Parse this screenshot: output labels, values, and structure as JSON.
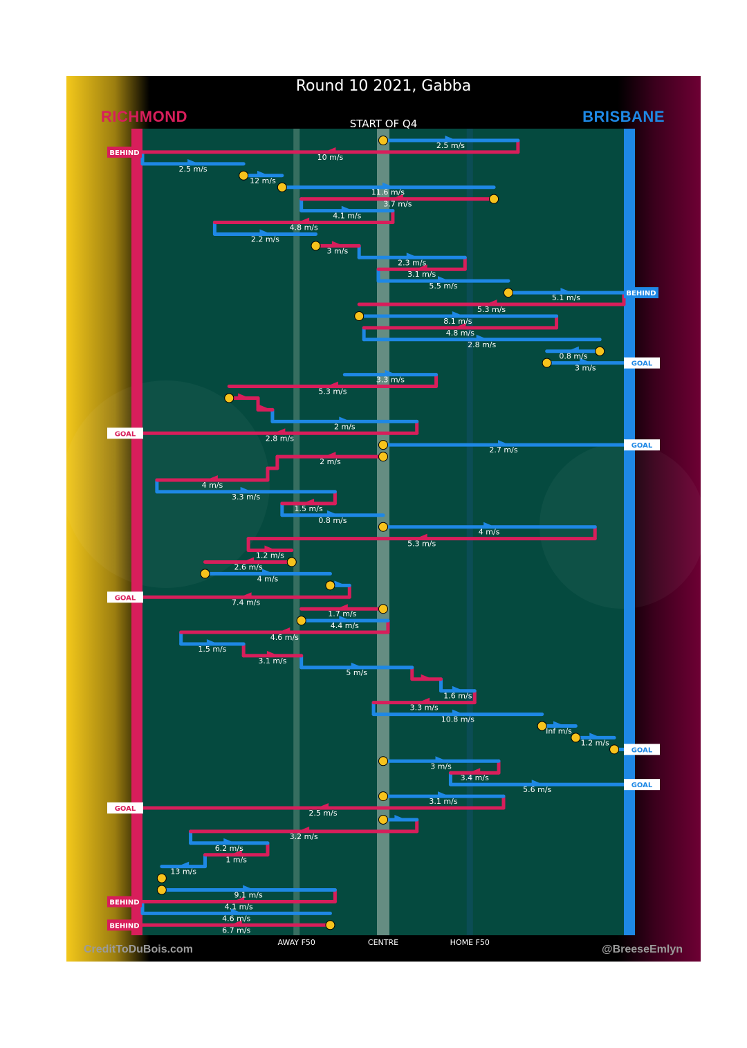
{
  "header": {
    "title": "Round 10 2021, Gabba",
    "team_left": "RICHMOND",
    "team_right": "BRISBANE",
    "subtitle": "START OF Q4",
    "credit_left": "CreditToDuBois.com",
    "credit_right": "@BreeseEmlyn"
  },
  "colors": {
    "richmond": "#d81e5b",
    "brisbane": "#1e88e5",
    "field": "#054a3f",
    "possession_marker": "#f7c31c"
  },
  "chart_data": {
    "type": "line",
    "title": "Round 10 2021, Gabba",
    "subtitle": "START OF Q4",
    "description": "Ball movement chains; x = field position (Richmond goal = 0, Brisbane goal = 100), each row is one chain segment with speed label",
    "x_range": [
      0,
      100
    ],
    "axis_labels": [
      "AWAY F50",
      "CENTRE",
      "HOME F50"
    ],
    "axis_positions": [
      32,
      50,
      68
    ],
    "outcome_labels": {
      "goal": "GOAL",
      "behind": "BEHIND"
    },
    "segments": [
      {
        "team": "BRI",
        "from": 50,
        "to": 78,
        "speed": "2.5 m/s",
        "start_marker": true
      },
      {
        "team": "RIC",
        "from": 78,
        "to": 0,
        "speed": "10 m/s",
        "outcome": "BEHIND"
      },
      {
        "team": "BRI",
        "from": 0,
        "to": 21,
        "speed": "2.5 m/s"
      },
      {
        "team": "BRI",
        "from": 21,
        "to": 29,
        "speed": "12 m/s",
        "start_marker": true
      },
      {
        "team": "BRI",
        "from": 29,
        "to": 73,
        "speed": "11.6 m/s",
        "start_marker": true
      },
      {
        "team": "RIC",
        "from": 73,
        "to": 33,
        "speed": "3.7 m/s",
        "start_marker": true
      },
      {
        "team": "BRI",
        "from": 33,
        "to": 52,
        "speed": "4.1 m/s"
      },
      {
        "team": "RIC",
        "from": 52,
        "to": 15,
        "speed": "4.8 m/s"
      },
      {
        "team": "BRI",
        "from": 15,
        "to": 36,
        "speed": "2.2 m/s"
      },
      {
        "team": "RIC",
        "from": 36,
        "to": 45,
        "speed": "3 m/s",
        "start_marker": true
      },
      {
        "team": "BRI",
        "from": 45,
        "to": 67,
        "speed": "2.3 m/s"
      },
      {
        "team": "RIC",
        "from": 67,
        "to": 49,
        "speed": "3.1 m/s"
      },
      {
        "team": "BRI",
        "from": 49,
        "to": 76,
        "speed": "5.5 m/s"
      },
      {
        "team": "BRI",
        "from": 76,
        "to": 100,
        "speed": "5.1 m/s",
        "start_marker": true,
        "outcome": "BEHIND"
      },
      {
        "team": "RIC",
        "from": 100,
        "to": 45,
        "speed": "5.3 m/s"
      },
      {
        "team": "BRI",
        "from": 45,
        "to": 86,
        "speed": "8.1 m/s",
        "start_marker": true
      },
      {
        "team": "RIC",
        "from": 86,
        "to": 46,
        "speed": "4.8 m/s"
      },
      {
        "team": "BRI",
        "from": 46,
        "to": 95,
        "speed": "2.8 m/s"
      },
      {
        "team": "BRI",
        "from": 95,
        "to": 84,
        "speed": "0.8 m/s",
        "start_marker": true
      },
      {
        "team": "BRI",
        "from": 84,
        "to": 100,
        "speed": "3 m/s",
        "start_marker": true,
        "outcome": "GOAL"
      },
      {
        "team": "BRI",
        "from": 42,
        "to": 61,
        "speed": "3.3 m/s"
      },
      {
        "team": "RIC",
        "from": 61,
        "to": 18,
        "speed": "5.3 m/s"
      },
      {
        "team": "RIC",
        "from": 18,
        "to": 24,
        "speed": "",
        "start_marker": true
      },
      {
        "team": "RIC",
        "from": 24,
        "to": 27,
        "speed": ""
      },
      {
        "team": "BRI",
        "from": 27,
        "to": 57,
        "speed": "2 m/s"
      },
      {
        "team": "RIC",
        "from": 57,
        "to": 0,
        "speed": "2.8 m/s",
        "outcome": "GOAL"
      },
      {
        "team": "BRI",
        "from": 50,
        "to": 100,
        "speed": "2.7 m/s",
        "start_marker": true,
        "outcome": "GOAL"
      },
      {
        "team": "RIC",
        "from": 50,
        "to": 28,
        "speed": "2 m/s",
        "start_marker": true
      },
      {
        "team": "RIC",
        "from": 28,
        "to": 26,
        "speed": ""
      },
      {
        "team": "RIC",
        "from": 26,
        "to": 3,
        "speed": "4 m/s"
      },
      {
        "team": "BRI",
        "from": 3,
        "to": 40,
        "speed": "3.3 m/s"
      },
      {
        "team": "RIC",
        "from": 40,
        "to": 29,
        "speed": "1.5 m/s"
      },
      {
        "team": "BRI",
        "from": 29,
        "to": 50,
        "speed": "0.8 m/s"
      },
      {
        "team": "BRI",
        "from": 50,
        "to": 94,
        "speed": "4 m/s",
        "start_marker": true
      },
      {
        "team": "RIC",
        "from": 94,
        "to": 22,
        "speed": "5.3 m/s"
      },
      {
        "team": "RIC",
        "from": 22,
        "to": 31,
        "speed": "1.2 m/s"
      },
      {
        "team": "RIC",
        "from": 31,
        "to": 13,
        "speed": "2.6 m/s",
        "start_marker": true
      },
      {
        "team": "BRI",
        "from": 13,
        "to": 39,
        "speed": "4 m/s",
        "start_marker": true
      },
      {
        "team": "BRI",
        "from": 39,
        "to": 43,
        "speed": "",
        "start_marker": true
      },
      {
        "team": "RIC",
        "from": 43,
        "to": 0,
        "speed": "7.4 m/s",
        "outcome": "GOAL"
      },
      {
        "team": "RIC",
        "from": 50,
        "to": 33,
        "speed": "1.7 m/s",
        "start_marker": true
      },
      {
        "team": "BRI",
        "from": 33,
        "to": 51,
        "speed": "4.4 m/s",
        "start_marker": true
      },
      {
        "team": "RIC",
        "from": 51,
        "to": 8,
        "speed": "4.6 m/s"
      },
      {
        "team": "BRI",
        "from": 8,
        "to": 21,
        "speed": "1.5 m/s"
      },
      {
        "team": "RIC",
        "from": 21,
        "to": 33,
        "speed": "3.1 m/s"
      },
      {
        "team": "BRI",
        "from": 33,
        "to": 56,
        "speed": "5 m/s"
      },
      {
        "team": "RIC",
        "from": 56,
        "to": 62,
        "speed": ""
      },
      {
        "team": "BRI",
        "from": 62,
        "to": 69,
        "speed": "1.6 m/s"
      },
      {
        "team": "RIC",
        "from": 69,
        "to": 48,
        "speed": "3.3 m/s"
      },
      {
        "team": "BRI",
        "from": 48,
        "to": 83,
        "speed": "10.8 m/s"
      },
      {
        "team": "BRI",
        "from": 83,
        "to": 90,
        "speed": "Inf m/s",
        "start_marker": true
      },
      {
        "team": "BRI",
        "from": 90,
        "to": 98,
        "speed": "1.2 m/s",
        "start_marker": true
      },
      {
        "team": "BRI",
        "from": 98,
        "to": 100,
        "speed": "",
        "start_marker": true,
        "outcome": "GOAL"
      },
      {
        "team": "BRI",
        "from": 50,
        "to": 74,
        "speed": "3 m/s",
        "start_marker": true
      },
      {
        "team": "RIC",
        "from": 74,
        "to": 64,
        "speed": "3.4 m/s"
      },
      {
        "team": "BRI",
        "from": 64,
        "to": 100,
        "speed": "5.6 m/s",
        "outcome": "GOAL"
      },
      {
        "team": "BRI",
        "from": 50,
        "to": 75,
        "speed": "3.1 m/s",
        "start_marker": true
      },
      {
        "team": "RIC",
        "from": 75,
        "to": 0,
        "speed": "2.5 m/s",
        "outcome": "GOAL"
      },
      {
        "team": "BRI",
        "from": 50,
        "to": 57,
        "speed": "",
        "start_marker": true
      },
      {
        "team": "RIC",
        "from": 57,
        "to": 10,
        "speed": "3.2 m/s"
      },
      {
        "team": "BRI",
        "from": 10,
        "to": 26,
        "speed": "6.2 m/s"
      },
      {
        "team": "RIC",
        "from": 26,
        "to": 13,
        "speed": "1 m/s"
      },
      {
        "team": "BRI",
        "from": 13,
        "to": 4,
        "speed": "13 m/s"
      },
      {
        "team": "RIC",
        "from": 4,
        "to": 4,
        "speed": "",
        "start_marker": true
      },
      {
        "team": "BRI",
        "from": 4,
        "to": 40,
        "speed": "9.1 m/s",
        "start_marker": true
      },
      {
        "team": "RIC",
        "from": 40,
        "to": 0,
        "speed": "4.1 m/s",
        "outcome": "BEHIND"
      },
      {
        "team": "BRI",
        "from": 0,
        "to": 39,
        "speed": "4.6 m/s"
      },
      {
        "team": "RIC",
        "from": 39,
        "to": 0,
        "speed": "6.7 m/s",
        "start_marker": true,
        "outcome": "BEHIND"
      }
    ]
  }
}
